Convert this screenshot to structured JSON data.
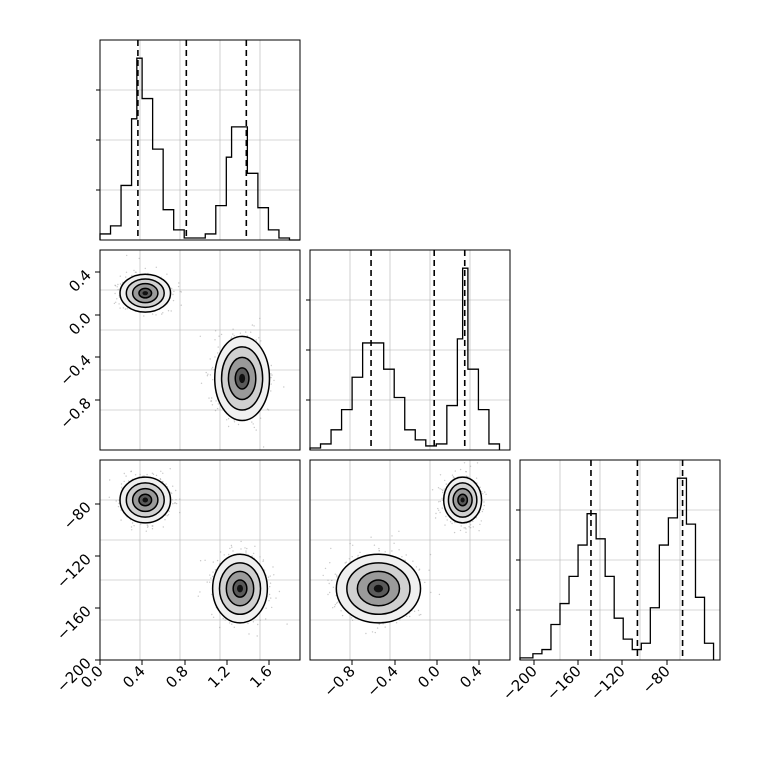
{
  "chart_data": [
    {
      "type": "histogram",
      "panel": "hist-param-1",
      "xlim": [
        0.0,
        1.9
      ],
      "y_ticks_unlabeled": true,
      "quantiles": [
        0.36,
        0.82,
        1.39
      ],
      "bin_edges": [
        0.0,
        0.1,
        0.2,
        0.3,
        0.35,
        0.4,
        0.5,
        0.6,
        0.7,
        0.8,
        0.9,
        1.0,
        1.1,
        1.2,
        1.25,
        1.3,
        1.4,
        1.5,
        1.6,
        1.7,
        1.8,
        1.9
      ],
      "counts": [
        0.03,
        0.07,
        0.27,
        0.6,
        0.9,
        0.7,
        0.45,
        0.15,
        0.05,
        0.01,
        0.01,
        0.03,
        0.17,
        0.41,
        0.56,
        0.56,
        0.33,
        0.16,
        0.05,
        0.01,
        0.0
      ],
      "grid": true
    },
    {
      "type": "contour",
      "panel": "scatter-param-1-vs-param-2",
      "xlim": [
        0.0,
        1.9
      ],
      "ylim": [
        -1.3,
        0.6
      ],
      "x_ticks": [
        "0.0",
        "0.4",
        "0.8",
        "1.2",
        "1.6"
      ],
      "y_ticks": [
        "0.4",
        "0.0",
        "−0.4",
        "−0.8"
      ],
      "clusters": [
        {
          "center": [
            0.43,
            0.19
          ],
          "spread": [
            0.12,
            0.09
          ]
        },
        {
          "center": [
            1.35,
            -0.62
          ],
          "spread": [
            0.13,
            0.2
          ]
        }
      ],
      "grid": true
    },
    {
      "type": "histogram",
      "panel": "hist-param-2",
      "xlim": [
        -1.3,
        0.6
      ],
      "y_ticks_unlabeled": true,
      "quantiles": [
        -0.72,
        -0.12,
        0.17
      ],
      "bin_edges": [
        -1.3,
        -1.2,
        -1.1,
        -1.0,
        -0.9,
        -0.8,
        -0.7,
        -0.6,
        -0.5,
        -0.4,
        -0.3,
        -0.2,
        -0.1,
        0.0,
        0.1,
        0.15,
        0.2,
        0.3,
        0.4,
        0.5
      ],
      "counts": [
        0.01,
        0.03,
        0.1,
        0.2,
        0.36,
        0.53,
        0.53,
        0.4,
        0.26,
        0.1,
        0.05,
        0.02,
        0.03,
        0.22,
        0.55,
        0.9,
        0.4,
        0.2,
        0.03
      ],
      "grid": true
    },
    {
      "type": "contour",
      "panel": "scatter-param-1-vs-param-3",
      "xlim": [
        0.0,
        1.9
      ],
      "ylim": [
        -200,
        -60
      ],
      "x_ticks": [
        "0.0",
        "0.4",
        "0.8",
        "1.2",
        "1.6"
      ],
      "y_ticks": [
        "−80",
        "−120",
        "−160",
        "−200"
      ],
      "clusters": [
        {
          "center": [
            0.43,
            -88
          ],
          "spread": [
            0.12,
            8
          ]
        },
        {
          "center": [
            1.33,
            -150
          ],
          "spread": [
            0.13,
            12
          ]
        }
      ],
      "grid": true
    },
    {
      "type": "contour",
      "panel": "scatter-param-2-vs-param-3",
      "xlim": [
        -1.3,
        0.6
      ],
      "ylim": [
        -200,
        -60
      ],
      "x_ticks": [
        "−0.8",
        "−0.4",
        "0.0",
        "0.4"
      ],
      "y_ticks": [],
      "clusters": [
        {
          "center": [
            0.15,
            -88
          ],
          "spread": [
            0.09,
            8
          ]
        },
        {
          "center": [
            -0.65,
            -150
          ],
          "spread": [
            0.2,
            12
          ]
        }
      ],
      "grid": true
    },
    {
      "type": "histogram",
      "panel": "hist-param-3",
      "xlim": [
        -210,
        -55
      ],
      "y_ticks_unlabeled": true,
      "quantiles": [
        -155,
        -119,
        -84
      ],
      "bin_edges": [
        -210,
        -200,
        -193,
        -186,
        -179,
        -172,
        -165,
        -158,
        -151,
        -144,
        -137,
        -130,
        -123,
        -116,
        -109,
        -102,
        -95,
        -88,
        -81,
        -74,
        -67,
        -60
      ],
      "counts": [
        0.01,
        0.03,
        0.05,
        0.17,
        0.27,
        0.4,
        0.55,
        0.7,
        0.58,
        0.4,
        0.2,
        0.1,
        0.05,
        0.08,
        0.25,
        0.55,
        0.68,
        0.87,
        0.65,
        0.3,
        0.08
      ],
      "grid": true
    }
  ],
  "tick_labels": {
    "col1_x": [
      "0.0",
      "0.4",
      "0.8",
      "1.2",
      "1.6"
    ],
    "col2_x": [
      "−0.8",
      "−0.4",
      "0.0",
      "0.4"
    ],
    "col3_x": [
      "−200",
      "−160",
      "−120",
      "−80"
    ],
    "row2_y": [
      "0.4",
      "0.0",
      "−0.4",
      "−0.8"
    ],
    "row3_y": [
      "−80",
      "−120",
      "−160",
      "−200"
    ]
  },
  "colors": {
    "line": "#000000",
    "grid": "#b0b0b0",
    "points": "#9a9a9a",
    "fill_levels": [
      "#f0f0f0",
      "#d0d0d0",
      "#9a9a9a",
      "#5a5a5a",
      "#111111"
    ]
  }
}
